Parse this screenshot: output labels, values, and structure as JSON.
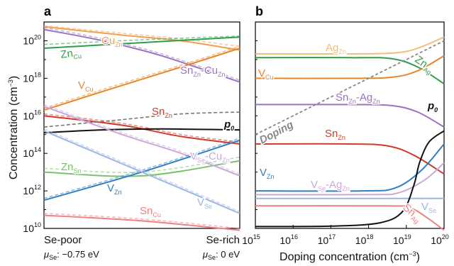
{
  "chart_data": [
    {
      "panel": "a",
      "type": "line",
      "ylabel_main": "Concentration (cm",
      "ylabel_exp": "−3",
      "ylabel_close": ")",
      "yscale": "log",
      "ylim_exp": [
        10,
        21
      ],
      "y_ticks_exp": [
        10,
        12,
        14,
        16,
        18,
        20
      ],
      "x_categories": [
        {
          "label": "Se-poor",
          "mu_label": "μ",
          "mu_sub": "Se",
          "mu_value": ": −0.75 eV"
        },
        {
          "label": "Se-rich",
          "mu_label": "μ",
          "mu_sub": "Se",
          "mu_value": ": 0 eV"
        }
      ],
      "x_range": [
        0,
        1
      ],
      "series": [
        {
          "name": "Cu",
          "sub": "Zn",
          "color": "#f0a050",
          "solid": [
            [
              0,
              20.75
            ],
            [
              0.4,
              20.3
            ],
            [
              0.7,
              20.0
            ],
            [
              1,
              19.5
            ]
          ],
          "dashed": [
            [
              0,
              20.8
            ],
            [
              0.4,
              20.4
            ],
            [
              0.7,
              20.1
            ],
            [
              1,
              19.7
            ]
          ]
        },
        {
          "name": "Zn",
          "sub": "Cu",
          "color": "#2e9e4a",
          "solid": [
            [
              0,
              19.6
            ],
            [
              0.5,
              19.9
            ],
            [
              1,
              20.2
            ]
          ],
          "dashed": [
            [
              0,
              19.8
            ],
            [
              0.5,
              20.05
            ],
            [
              1,
              20.25
            ]
          ]
        },
        {
          "name": "Sn",
          "sub": "Zn",
          "name2": "-Cu",
          "sub2": "Zn",
          "color": "#9b72c2",
          "solid": [
            [
              0,
              20.6
            ],
            [
              0.3,
              20.0
            ],
            [
              0.6,
              19.2
            ],
            [
              1,
              17.8
            ]
          ],
          "dashed": [
            [
              0,
              20.7
            ],
            [
              0.3,
              20.1
            ],
            [
              0.6,
              19.3
            ],
            [
              1,
              17.9
            ]
          ]
        },
        {
          "name": "V",
          "sub": "Cu",
          "color": "#e8862a",
          "solid": [
            [
              0,
              16.3
            ],
            [
              0.3,
              17.3
            ],
            [
              0.7,
              18.6
            ],
            [
              1,
              19.6
            ]
          ],
          "dashed": [
            [
              0,
              16.4
            ],
            [
              0.3,
              17.4
            ],
            [
              0.7,
              18.7
            ],
            [
              1,
              19.7
            ]
          ]
        },
        {
          "name": "Sn",
          "sub": "Zn",
          "color": "#d03a2a",
          "solid": [
            [
              0,
              16.0
            ],
            [
              0.4,
              15.5
            ],
            [
              0.7,
              14.9
            ],
            [
              1,
              14.5
            ]
          ],
          "dashed": [
            [
              0,
              16.1
            ],
            [
              0.4,
              15.6
            ],
            [
              0.7,
              15.0
            ],
            [
              1,
              14.6
            ]
          ]
        },
        {
          "name": "p",
          "sub": "0",
          "color": "#111111",
          "solid": [
            [
              0,
              15.1
            ],
            [
              0.3,
              15.25
            ],
            [
              0.6,
              15.3
            ],
            [
              1,
              15.25
            ]
          ],
          "dashed": [
            [
              0,
              15.4
            ],
            [
              0.4,
              15.8
            ],
            [
              0.7,
              16.1
            ],
            [
              1,
              16.2
            ]
          ],
          "dashed_color": "#777777"
        },
        {
          "name": "Zn",
          "sub": "Sn",
          "color": "#7cc26a",
          "solid": [
            [
              0,
              13.0
            ],
            [
              0.5,
              12.8
            ],
            [
              1,
              13.6
            ]
          ],
          "dashed": [
            [
              0,
              13.2
            ],
            [
              0.5,
              13.0
            ],
            [
              1,
              13.8
            ]
          ]
        },
        {
          "name": "V",
          "sub": "Se",
          "name2": "-Cu",
          "sub2": "Zn",
          "color": "#c9a8d9",
          "solid": [
            [
              0,
              16.5
            ],
            [
              0.4,
              15.0
            ],
            [
              0.7,
              14.0
            ],
            [
              1,
              12.8
            ]
          ],
          "dashed": [
            [
              0,
              16.6
            ],
            [
              0.4,
              15.1
            ],
            [
              0.7,
              14.1
            ],
            [
              1,
              12.9
            ]
          ]
        },
        {
          "name": "V",
          "sub": "Zn",
          "color": "#2f7fc0",
          "solid": [
            [
              0,
              11.5
            ],
            [
              0.5,
              13.0
            ],
            [
              1,
              14.7
            ]
          ],
          "dashed": [
            [
              0,
              11.6
            ],
            [
              0.5,
              13.1
            ],
            [
              1,
              14.8
            ]
          ]
        },
        {
          "name": "V",
          "sub": "Se",
          "color": "#9bb8e0",
          "solid": [
            [
              0,
              15.2
            ],
            [
              0.5,
              13.0
            ],
            [
              1,
              10.8
            ]
          ],
          "dashed": [
            [
              0,
              15.3
            ],
            [
              0.5,
              13.1
            ],
            [
              1,
              10.9
            ]
          ]
        },
        {
          "name": "Sn",
          "sub": "Cu",
          "color": "#f08080",
          "solid": [
            [
              0,
              10.7
            ],
            [
              0.5,
              10.4
            ],
            [
              1,
              9.9
            ]
          ],
          "dashed": [
            [
              0,
              10.8
            ],
            [
              0.5,
              10.5
            ],
            [
              1,
              10.0
            ]
          ]
        }
      ]
    },
    {
      "panel": "b",
      "type": "line",
      "xlabel_main": "Doping concentration (cm",
      "xlabel_exp": "−3",
      "xlabel_close": ")",
      "xscale": "log",
      "xlim_exp": [
        15,
        20
      ],
      "x_ticks_exp": [
        15,
        16,
        17,
        18,
        19,
        20
      ],
      "yscale": "log",
      "ylim_exp": [
        10,
        21
      ],
      "doping_label": "Doping",
      "series": [
        {
          "name": "Ag",
          "sub": "Zn",
          "color": "#f5bd7a",
          "points": [
            [
              15,
              19.3
            ],
            [
              17.5,
              19.3
            ],
            [
              18.7,
              19.35
            ],
            [
              19.3,
              19.6
            ],
            [
              20,
              20.2
            ]
          ]
        },
        {
          "name": "Zn",
          "sub": "Ag",
          "color": "#2e9e4a",
          "points": [
            [
              15,
              19.1
            ],
            [
              17.5,
              19.1
            ],
            [
              18.6,
              19.05
            ],
            [
              19.3,
              18.6
            ],
            [
              20,
              17.7
            ]
          ]
        },
        {
          "name": "V",
          "sub": "Cu",
          "color": "#e8862a",
          "points": [
            [
              15,
              18.0
            ],
            [
              17.5,
              18.0
            ],
            [
              18.6,
              18.05
            ],
            [
              19.3,
              18.4
            ],
            [
              20,
              19.2
            ]
          ]
        },
        {
          "name": "Sn",
          "sub": "Zn",
          "name2": "-Ag",
          "sub2": "Zn",
          "color": "#9b72c2",
          "points": [
            [
              15,
              16.6
            ],
            [
              17.5,
              16.6
            ],
            [
              18.6,
              16.55
            ],
            [
              19.3,
              16.2
            ],
            [
              20,
              15.4
            ]
          ]
        },
        {
          "name": "Sn",
          "sub": "Zn",
          "color": "#d03a2a",
          "points": [
            [
              15,
              14.5
            ],
            [
              17.5,
              14.5
            ],
            [
              18.5,
              14.4
            ],
            [
              19.2,
              13.9
            ],
            [
              20,
              12.9
            ]
          ]
        },
        {
          "name": "V",
          "sub": "Zn",
          "color": "#2f7fc0",
          "points": [
            [
              15,
              12.0
            ],
            [
              17.8,
              12.0
            ],
            [
              18.7,
              12.15
            ],
            [
              19.4,
              13.1
            ],
            [
              20,
              14.5
            ]
          ]
        },
        {
          "name": "V",
          "sub": "Se",
          "name2": "-Ag",
          "sub2": "Zn",
          "color": "#c9a8d9",
          "points": [
            [
              15,
              11.8
            ],
            [
              18,
              11.8
            ],
            [
              18.8,
              11.9
            ],
            [
              19.5,
              12.6
            ],
            [
              20,
              13.5
            ]
          ]
        },
        {
          "name": "V",
          "sub": "Se",
          "color": "#9bb8e0",
          "points": [
            [
              15,
              11.6
            ],
            [
              20,
              11.6
            ]
          ]
        },
        {
          "name": "Sn",
          "sub": "Ag",
          "color": "#f08080",
          "points": [
            [
              15,
              11.2
            ],
            [
              18.5,
              11.2
            ],
            [
              19.1,
              11.1
            ],
            [
              19.6,
              10.5
            ],
            [
              20,
              9.9
            ]
          ]
        },
        {
          "name": "p",
          "sub": "0",
          "color": "#111111",
          "points": [
            [
              15,
              10.1
            ],
            [
              17,
              10.12
            ],
            [
              18.3,
              10.3
            ],
            [
              18.9,
              10.9
            ],
            [
              19.2,
              12.3
            ],
            [
              19.35,
              13.5
            ],
            [
              19.6,
              14.6
            ],
            [
              20,
              15.2
            ]
          ]
        },
        {
          "name": "Doping",
          "color": "#888888",
          "dashed": true,
          "points": [
            [
              15,
              15.0
            ],
            [
              20,
              20.0
            ]
          ]
        }
      ]
    }
  ]
}
